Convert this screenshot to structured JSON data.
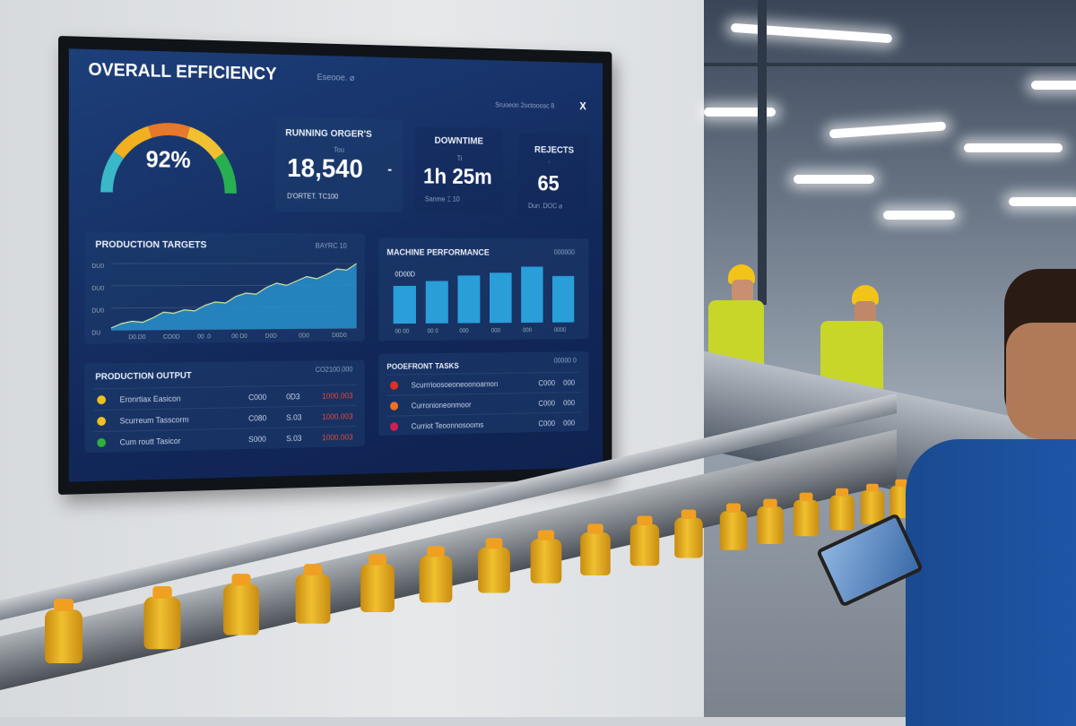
{
  "dashboard": {
    "title": "OVERALL EFFICIENCY",
    "title_sub": "Eseooe. ⌀",
    "header_status": "Sruoeon 2octooosc 8",
    "close_label": "X",
    "gauge": {
      "value_label": "92%",
      "value_percent": 92,
      "colors": [
        "#3ab8c8",
        "#f0b020",
        "#e8782a",
        "#f0c030",
        "#28b050"
      ]
    },
    "running_orders": {
      "label": "RUNNING ORGER'S",
      "small": "Tou",
      "value": "18,540",
      "trend": "-",
      "footer": "D'ORTET. TC100"
    },
    "downtime": {
      "label": "DOWNTIME",
      "small": "Ti",
      "value": "1h 25m",
      "footer": "Sanme  ⌶ 10"
    },
    "rejects": {
      "label": "REJECTS",
      "small": "'",
      "value": "65",
      "footer": "Dun .DOC ⌀"
    },
    "production_targets": {
      "label": "PRODUCTION TARGETS",
      "tag": "BAYRC 10",
      "y_ticks": [
        "DU0",
        "DU0",
        "DU0",
        "DU"
      ],
      "x_ticks": [
        "D0.D0",
        "CO0D",
        "00 .0",
        "00 D0",
        "D0D",
        "0D0",
        "D0D0"
      ],
      "series": [
        2,
        6,
        8,
        7,
        11,
        16,
        15,
        18,
        17,
        22,
        25,
        24,
        30,
        33,
        32,
        38,
        42,
        40,
        44,
        48,
        46,
        50,
        55,
        54,
        60
      ]
    },
    "machine_performance": {
      "label": "MACHINE PERFORMANCE",
      "tag": "000000",
      "inner_tag": "0D00D",
      "x_ticks": [
        "00 00",
        "00 0",
        "000",
        "000",
        "000",
        "0000"
      ],
      "values": [
        55,
        62,
        70,
        74,
        83,
        69
      ]
    },
    "production_output": {
      "label": "PRODUCTION OUTPUT",
      "tag": "CO2100.000",
      "rows": [
        {
          "name": "Eronrtiax Easicon",
          "a": "C000",
          "b": "0D3",
          "c": "1000.003",
          "color": "#f0c020"
        },
        {
          "name": "Scurreum Tasscorm",
          "a": "C080",
          "b": "S.03",
          "c": "1000.003",
          "color": "#f0c020"
        },
        {
          "name": "Cum routt Tasicor",
          "a": "S000",
          "b": "S.03",
          "c": "1000.003",
          "color": "#30b040"
        }
      ]
    },
    "tasks": {
      "label": "POOEFRONT TASKS",
      "tag": "00000 0",
      "rows": [
        {
          "name": "Scurrrioosoeoneoonoamon",
          "a": "C000",
          "b": "000",
          "color": "#e03020"
        },
        {
          "name": "Curronioneonmoor",
          "a": "C000",
          "b": "000",
          "color": "#f07020"
        },
        {
          "name": "Curriot Teoonnosooms",
          "a": "C000",
          "b": "000",
          "color": "#d02050"
        }
      ]
    }
  }
}
